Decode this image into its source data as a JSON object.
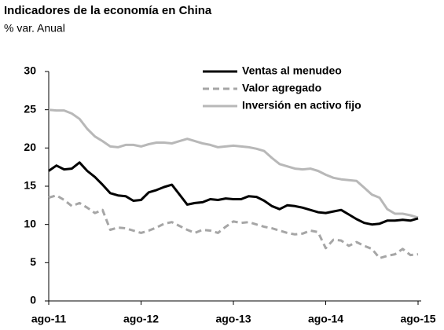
{
  "chart_data": {
    "type": "line",
    "title": "Indicadores de la economía en China",
    "subtitle": "% var. Anual",
    "categories": [
      "ago-11",
      null,
      null,
      null,
      null,
      null,
      null,
      null,
      null,
      null,
      null,
      null,
      "ago-12",
      null,
      null,
      null,
      null,
      null,
      null,
      null,
      null,
      null,
      null,
      null,
      "ago-13",
      null,
      null,
      null,
      null,
      null,
      null,
      null,
      null,
      null,
      null,
      null,
      "ago-14",
      null,
      null,
      null,
      null,
      null,
      null,
      null,
      null,
      null,
      null,
      null,
      "ago-15"
    ],
    "series": [
      {
        "name": "Ventas al menudeo",
        "color": "#000000",
        "dash": false,
        "values": [
          17.0,
          17.7,
          17.2,
          17.3,
          18.1,
          17.0,
          16.2,
          15.2,
          14.1,
          13.8,
          13.7,
          13.1,
          13.2,
          14.2,
          14.5,
          14.9,
          15.2,
          13.9,
          12.6,
          12.8,
          12.9,
          13.3,
          13.2,
          13.4,
          13.3,
          13.3,
          13.7,
          13.6,
          13.1,
          12.4,
          12.0,
          12.5,
          12.4,
          12.2,
          11.9,
          11.6,
          11.5,
          11.7,
          11.9,
          11.3,
          10.7,
          10.2,
          10.0,
          10.1,
          10.5,
          10.5,
          10.6,
          10.5,
          10.8
        ]
      },
      {
        "name": "Valor agregado",
        "color": "#a6a6a6",
        "dash": true,
        "values": [
          13.5,
          13.8,
          13.2,
          12.4,
          12.8,
          12.2,
          11.5,
          11.9,
          9.3,
          9.6,
          9.5,
          9.2,
          8.9,
          9.2,
          9.6,
          10.1,
          10.3,
          9.8,
          9.3,
          8.9,
          9.3,
          9.2,
          8.9,
          9.7,
          10.4,
          10.2,
          10.3,
          10.0,
          9.7,
          9.5,
          9.2,
          8.9,
          8.7,
          8.8,
          9.2,
          9.0,
          6.9,
          8.0,
          7.9,
          7.2,
          7.7,
          7.2,
          6.8,
          5.6,
          5.9,
          6.1,
          6.8,
          6.0,
          6.1
        ]
      },
      {
        "name": "Inversión en activo fijo",
        "color": "#b8b8b8",
        "dash": false,
        "values": [
          25.0,
          24.9,
          24.9,
          24.5,
          23.8,
          22.5,
          21.5,
          20.9,
          20.2,
          20.1,
          20.4,
          20.4,
          20.2,
          20.5,
          20.7,
          20.7,
          20.6,
          20.9,
          21.2,
          20.9,
          20.6,
          20.4,
          20.1,
          20.2,
          20.3,
          20.2,
          20.1,
          19.9,
          19.6,
          18.7,
          17.9,
          17.6,
          17.3,
          17.2,
          17.3,
          17.0,
          16.5,
          16.1,
          15.9,
          15.8,
          15.7,
          14.8,
          13.9,
          13.5,
          12.0,
          11.4,
          11.4,
          11.2,
          10.9
        ]
      }
    ],
    "ylim": [
      0,
      30
    ],
    "yticks": [
      0,
      5,
      10,
      15,
      20,
      25,
      30
    ],
    "grid": false,
    "legend": "top-right"
  }
}
